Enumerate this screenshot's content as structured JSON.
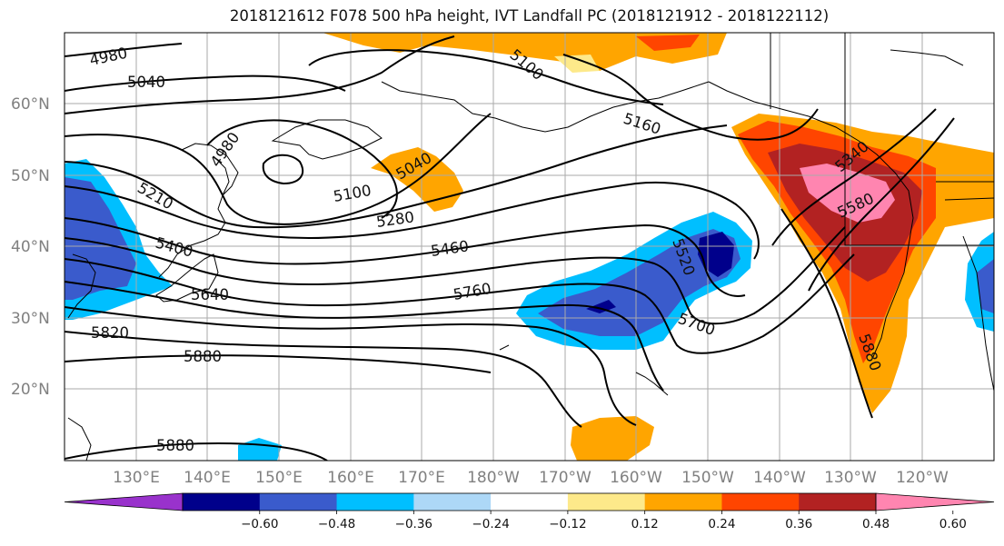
{
  "title": "2018121612 F078 500 hPa height, IVT Landfall PC (2018121912 - 2018122112)",
  "lat_labels": [
    "60°N",
    "50°N",
    "40°N",
    "30°N",
    "20°N"
  ],
  "lon_labels": [
    "130°E",
    "140°E",
    "150°E",
    "160°E",
    "170°E",
    "180°W",
    "170°W",
    "160°W",
    "150°W",
    "140°W",
    "130°W",
    "120°W"
  ],
  "contour_labels": [
    "4980",
    "5040",
    "5100",
    "4980",
    "5210",
    "5040",
    "5100",
    "5280",
    "5400",
    "5460",
    "5640",
    "5760",
    "5820",
    "5880",
    "5880",
    "5160",
    "5520",
    "5700",
    "5580",
    "5880",
    "5340"
  ],
  "colorbar": {
    "tick_labels": [
      "−0.60",
      "−0.48",
      "−0.36",
      "−0.24",
      "−0.12",
      "0.12",
      "0.24",
      "0.36",
      "0.48",
      "0.60"
    ],
    "colors": [
      "#9932cc",
      "#00008b",
      "#3a5bcc",
      "#00bfff",
      "#add8f7",
      "#ffffff",
      "#fde98a",
      "#ffa500",
      "#ff4500",
      "#b22222",
      "#ff85b0"
    ]
  },
  "colors": {
    "grid": "#aaaaaa",
    "contour": "#000000",
    "coast": "#000000"
  }
}
